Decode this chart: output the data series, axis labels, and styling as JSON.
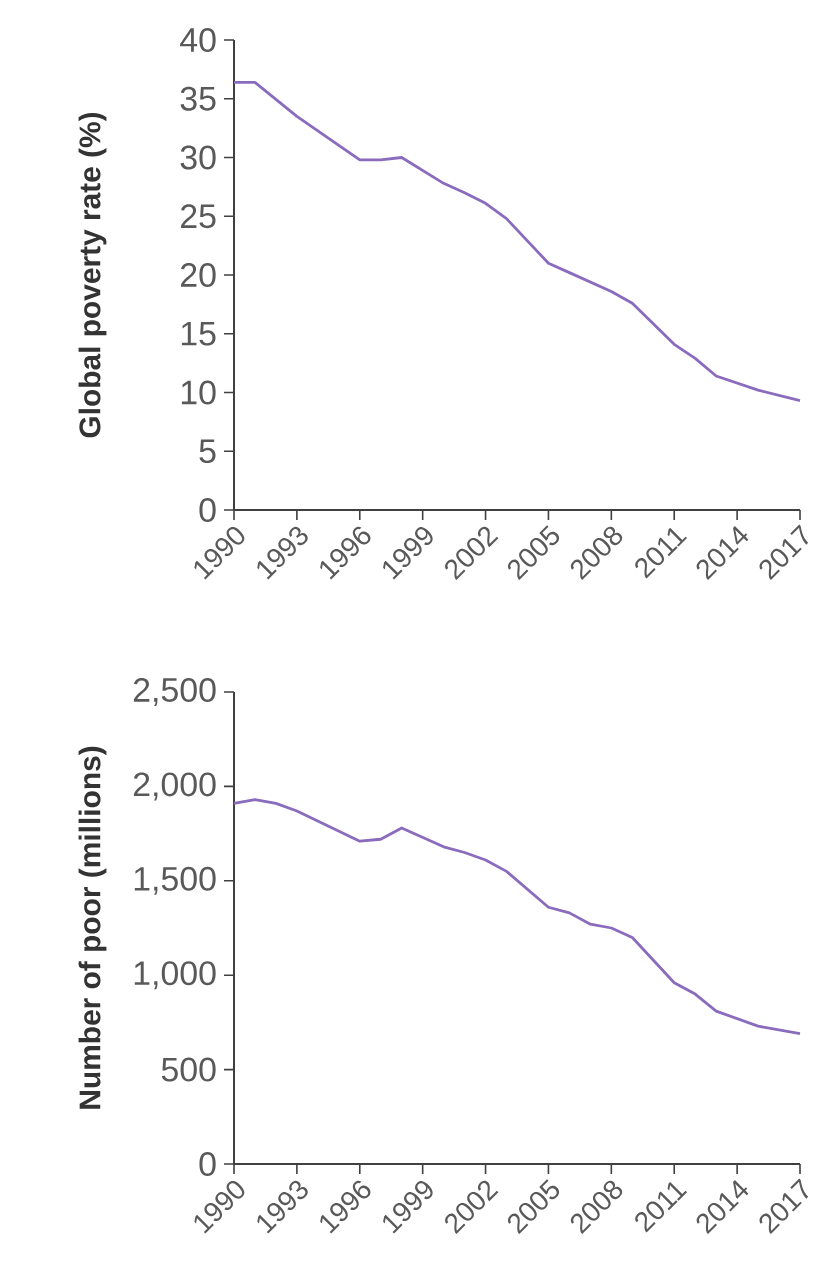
{
  "chart_data": [
    {
      "type": "line",
      "ylabel": "Global poverty rate (%)",
      "color": "#8a6bbd",
      "x": [
        1990,
        1991,
        1993,
        1996,
        1997,
        1998,
        2000,
        2001,
        2002,
        2003,
        2005,
        2006,
        2008,
        2009,
        2011,
        2012,
        2013,
        2015,
        2017
      ],
      "values": [
        36.4,
        36.4,
        33.5,
        29.8,
        29.8,
        30.0,
        27.8,
        27.0,
        26.1,
        24.8,
        21.0,
        20.2,
        18.6,
        17.6,
        14.1,
        12.9,
        11.4,
        10.2,
        9.3
      ],
      "xlim": [
        1990,
        2017
      ],
      "ylim": [
        0,
        40
      ],
      "xticks": [
        1990,
        1993,
        1996,
        1999,
        2002,
        2005,
        2008,
        2011,
        2014,
        2017
      ],
      "yticks": [
        0,
        5,
        10,
        15,
        20,
        25,
        30,
        35,
        40
      ]
    },
    {
      "type": "line",
      "ylabel": "Number of poor (millions)",
      "color": "#8a6bbd",
      "x": [
        1990,
        1991,
        1992,
        1993,
        1996,
        1997,
        1998,
        2000,
        2001,
        2002,
        2003,
        2005,
        2006,
        2007,
        2008,
        2009,
        2010,
        2011,
        2012,
        2013,
        2015,
        2017
      ],
      "values": [
        1910,
        1930,
        1910,
        1870,
        1710,
        1720,
        1780,
        1680,
        1650,
        1610,
        1550,
        1360,
        1330,
        1270,
        1250,
        1200,
        1080,
        960,
        900,
        810,
        730,
        690
      ],
      "xlim": [
        1990,
        2017
      ],
      "ylim": [
        0,
        2500
      ],
      "xticks": [
        1990,
        1993,
        1996,
        1999,
        2002,
        2005,
        2008,
        2011,
        2014,
        2017
      ],
      "yticks": [
        0,
        500,
        {
          "value": 1000,
          "label": "1,000"
        },
        {
          "value": 1500,
          "label": "1,500"
        },
        {
          "value": 2000,
          "label": "2,000"
        },
        {
          "value": 2500,
          "label": "2,500"
        }
      ]
    }
  ]
}
